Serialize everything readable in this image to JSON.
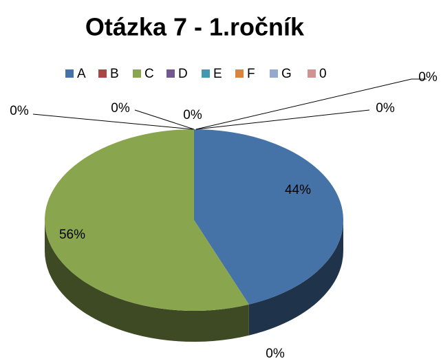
{
  "chart_data": {
    "type": "pie",
    "title": "Otázka 7 - 1.ročník",
    "categories": [
      "A",
      "B",
      "C",
      "D",
      "E",
      "F",
      "G",
      "0"
    ],
    "values": [
      44,
      0,
      56,
      0,
      0,
      0,
      0,
      0
    ],
    "value_labels": [
      "44%",
      "0%",
      "56%",
      "0%",
      "0%",
      "0%",
      "0%",
      "0%"
    ],
    "colors": [
      "#4572a7",
      "#aa4643",
      "#89a54e",
      "#71588f",
      "#4198af",
      "#db843d",
      "#93a9cf",
      "#d19392"
    ],
    "legend": "top"
  }
}
